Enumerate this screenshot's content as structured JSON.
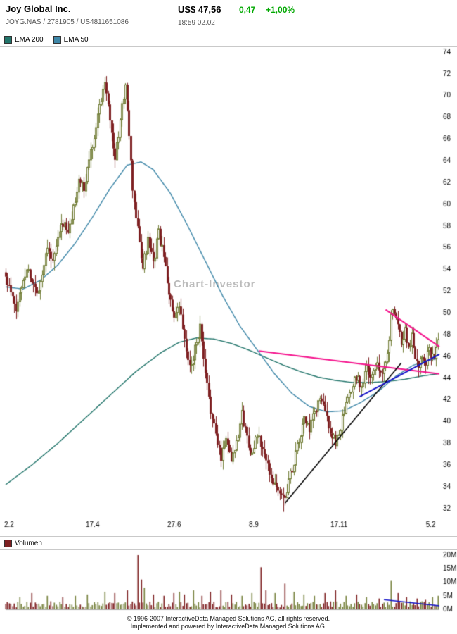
{
  "header": {
    "title": "Joy Global Inc.",
    "subtitle": "JOYG.NAS  /  2781905  /  US4811651086",
    "price_label": "US$ 47,56",
    "change_abs": "0,47",
    "change_pct": "+1,00%",
    "timestamp": "18:59  02.02"
  },
  "colors": {
    "positive_change": "#00a800"
  },
  "legend": {
    "items": [
      {
        "label": "EMA 200",
        "color": "#22756b"
      },
      {
        "label": "EMA 50",
        "color": "#3e87a8"
      }
    ]
  },
  "watermark": "Chart-Investor",
  "volume_legend": {
    "label": "Volumen",
    "color": "#7e2022"
  },
  "footer": {
    "line1": "© 1996-2007 InteractiveData Managed Solutions  AG, all rights reserved.",
    "line2": "Implemented and powered by InteractiveData Managed Solutions  AG."
  },
  "chart_data": {
    "type": "candlestick",
    "title": "Joy Global Inc. (JOYG.NAS) daily candles with EMA 200, EMA 50, trendlines and volume",
    "instrument": "JOYG.NAS",
    "last_close": 47.56,
    "days": 250,
    "y_axis": {
      "min": 32,
      "max": 74,
      "tick_step": 2,
      "ticks": [
        74,
        72,
        70,
        68,
        66,
        64,
        62,
        60,
        58,
        56,
        54,
        52,
        50,
        48,
        46,
        44,
        42,
        40,
        38,
        36,
        34,
        32
      ]
    },
    "x_axis": {
      "tick_labels": [
        "2.2",
        "17.4",
        "27.6",
        "8.9",
        "17.11",
        "5.2"
      ],
      "tick_days": [
        0,
        47,
        94,
        141,
        188,
        243
      ]
    },
    "close_waypoints": [
      [
        0,
        53.2
      ],
      [
        3,
        51.8
      ],
      [
        6,
        50.2
      ],
      [
        9,
        52.5
      ],
      [
        12,
        54.2
      ],
      [
        15,
        53.0
      ],
      [
        18,
        51.8
      ],
      [
        21,
        53.6
      ],
      [
        24,
        56.4
      ],
      [
        27,
        54.6
      ],
      [
        30,
        56.8
      ],
      [
        33,
        58.4
      ],
      [
        36,
        57.2
      ],
      [
        39,
        59.6
      ],
      [
        42,
        62.4
      ],
      [
        45,
        61.2
      ],
      [
        48,
        64.2
      ],
      [
        51,
        66.4
      ],
      [
        54,
        69.0
      ],
      [
        57,
        71.4
      ],
      [
        59,
        69.6
      ],
      [
        61,
        66.4
      ],
      [
        63,
        64.2
      ],
      [
        66,
        67.6
      ],
      [
        69,
        71.2
      ],
      [
        71,
        66.0
      ],
      [
        73,
        61.4
      ],
      [
        76,
        57.6
      ],
      [
        79,
        54.2
      ],
      [
        82,
        56.6
      ],
      [
        85,
        54.4
      ],
      [
        88,
        57.4
      ],
      [
        91,
        55.0
      ],
      [
        94,
        52.0
      ],
      [
        97,
        49.2
      ],
      [
        100,
        50.6
      ],
      [
        103,
        47.4
      ],
      [
        106,
        44.8
      ],
      [
        109,
        46.8
      ],
      [
        112,
        48.6
      ],
      [
        115,
        44.2
      ],
      [
        118,
        41.2
      ],
      [
        121,
        38.6
      ],
      [
        124,
        36.8
      ],
      [
        127,
        38.6
      ],
      [
        130,
        36.6
      ],
      [
        133,
        38.2
      ],
      [
        136,
        40.6
      ],
      [
        139,
        38.6
      ],
      [
        142,
        36.8
      ],
      [
        145,
        38.8
      ],
      [
        148,
        37.4
      ],
      [
        151,
        35.8
      ],
      [
        154,
        34.6
      ],
      [
        157,
        33.6
      ],
      [
        160,
        32.9
      ],
      [
        163,
        34.4
      ],
      [
        166,
        36.4
      ],
      [
        169,
        38.2
      ],
      [
        172,
        40.2
      ],
      [
        175,
        39.2
      ],
      [
        178,
        40.8
      ],
      [
        181,
        42.2
      ],
      [
        184,
        40.8
      ],
      [
        187,
        39.2
      ],
      [
        190,
        37.9
      ],
      [
        193,
        39.6
      ],
      [
        196,
        41.4
      ],
      [
        199,
        42.8
      ],
      [
        202,
        44.2
      ],
      [
        205,
        43.2
      ],
      [
        208,
        44.8
      ],
      [
        211,
        44.0
      ],
      [
        214,
        45.4
      ],
      [
        217,
        44.6
      ],
      [
        220,
        46.2
      ],
      [
        222,
        49.6
      ],
      [
        224,
        50.2
      ],
      [
        226,
        48.6
      ],
      [
        228,
        47.4
      ],
      [
        230,
        48.4
      ],
      [
        232,
        46.8
      ],
      [
        234,
        47.8
      ],
      [
        236,
        46.2
      ],
      [
        238,
        45.2
      ],
      [
        240,
        46.4
      ],
      [
        242,
        45.6
      ],
      [
        244,
        46.8
      ],
      [
        246,
        45.8
      ],
      [
        248,
        46.6
      ],
      [
        249,
        47.56
      ]
    ],
    "spike_low": {
      "day": 160,
      "low": 31.7
    },
    "ema200": {
      "color": "#22756b",
      "waypoints": [
        [
          0,
          34.2
        ],
        [
          15,
          36.0
        ],
        [
          30,
          38.0
        ],
        [
          45,
          40.2
        ],
        [
          60,
          42.4
        ],
        [
          75,
          44.6
        ],
        [
          90,
          46.4
        ],
        [
          100,
          47.3
        ],
        [
          110,
          47.7
        ],
        [
          120,
          47.6
        ],
        [
          130,
          47.2
        ],
        [
          140,
          46.6
        ],
        [
          150,
          45.9
        ],
        [
          160,
          45.2
        ],
        [
          170,
          44.6
        ],
        [
          180,
          44.1
        ],
        [
          190,
          43.8
        ],
        [
          200,
          43.6
        ],
        [
          210,
          43.6
        ],
        [
          220,
          43.7
        ],
        [
          230,
          43.9
        ],
        [
          240,
          44.2
        ],
        [
          249,
          44.4
        ]
      ]
    },
    "ema50": {
      "color": "#3e87a8",
      "waypoints": [
        [
          0,
          52.4
        ],
        [
          10,
          52.2
        ],
        [
          20,
          53.0
        ],
        [
          30,
          54.4
        ],
        [
          40,
          56.4
        ],
        [
          50,
          58.8
        ],
        [
          60,
          61.4
        ],
        [
          70,
          63.6
        ],
        [
          78,
          63.9
        ],
        [
          85,
          63.2
        ],
        [
          95,
          61.0
        ],
        [
          105,
          58.0
        ],
        [
          115,
          54.8
        ],
        [
          125,
          51.6
        ],
        [
          135,
          48.8
        ],
        [
          145,
          46.6
        ],
        [
          155,
          44.4
        ],
        [
          165,
          42.6
        ],
        [
          175,
          41.4
        ],
        [
          185,
          40.9
        ],
        [
          195,
          41.0
        ],
        [
          205,
          41.8
        ],
        [
          215,
          42.8
        ],
        [
          225,
          44.2
        ],
        [
          235,
          45.2
        ],
        [
          243,
          45.6
        ],
        [
          249,
          45.8
        ]
      ]
    },
    "trendlines": [
      {
        "name": "magenta-resistance-long",
        "color": "#f5138d",
        "width": 2,
        "from": [
          146,
          46.5
        ],
        "to": [
          250,
          44.4
        ]
      },
      {
        "name": "magenta-resistance-short",
        "color": "#f5138d",
        "width": 2,
        "from": [
          219,
          50.3
        ],
        "to": [
          250,
          46.9
        ]
      },
      {
        "name": "black-support",
        "color": "#000000",
        "width": 1.6,
        "from": [
          161,
          32.5
        ],
        "to": [
          228,
          45.4
        ]
      },
      {
        "name": "blue-support",
        "color": "#1414c8",
        "width": 2,
        "from": [
          204,
          42.3
        ],
        "to": [
          250,
          46.2
        ]
      }
    ],
    "candle_colors": {
      "up_stroke": "#77823e",
      "up_fill": "#ffffff",
      "down": "#7e2022"
    },
    "volume": {
      "unit": "M",
      "ylim": [
        0,
        20
      ],
      "ticks": [
        "20M",
        "15M",
        "10M",
        "5M",
        "0M"
      ],
      "base_range": [
        0.7,
        3.0
      ],
      "spikes": [
        [
          8,
          4.5
        ],
        [
          15,
          6
        ],
        [
          24,
          5
        ],
        [
          33,
          4.5
        ],
        [
          40,
          5
        ],
        [
          47,
          5.5
        ],
        [
          57,
          6.5
        ],
        [
          63,
          6
        ],
        [
          70,
          7
        ],
        [
          76,
          20
        ],
        [
          78,
          11
        ],
        [
          80,
          8
        ],
        [
          85,
          5.5
        ],
        [
          91,
          5
        ],
        [
          97,
          6
        ],
        [
          100,
          6.5
        ],
        [
          103,
          5.5
        ],
        [
          108,
          7
        ],
        [
          113,
          5
        ],
        [
          118,
          6.5
        ],
        [
          124,
          7
        ],
        [
          130,
          5.5
        ],
        [
          136,
          5
        ],
        [
          142,
          6
        ],
        [
          147,
          15.5
        ],
        [
          150,
          7
        ],
        [
          155,
          6
        ],
        [
          161,
          9.5
        ],
        [
          166,
          6.5
        ],
        [
          172,
          5.5
        ],
        [
          178,
          5
        ],
        [
          184,
          6
        ],
        [
          190,
          7
        ],
        [
          196,
          5
        ],
        [
          202,
          5.5
        ],
        [
          208,
          4.5
        ],
        [
          215,
          4
        ],
        [
          222,
          10.5
        ],
        [
          226,
          6
        ],
        [
          231,
          4.5
        ],
        [
          237,
          4
        ],
        [
          242,
          3.5
        ],
        [
          246,
          4.5
        ],
        [
          249,
          5
        ]
      ],
      "trendline": {
        "color": "#1414c8",
        "width": 1.5,
        "from": [
          218,
          3.6
        ],
        "to": [
          250,
          1.3
        ]
      }
    }
  }
}
